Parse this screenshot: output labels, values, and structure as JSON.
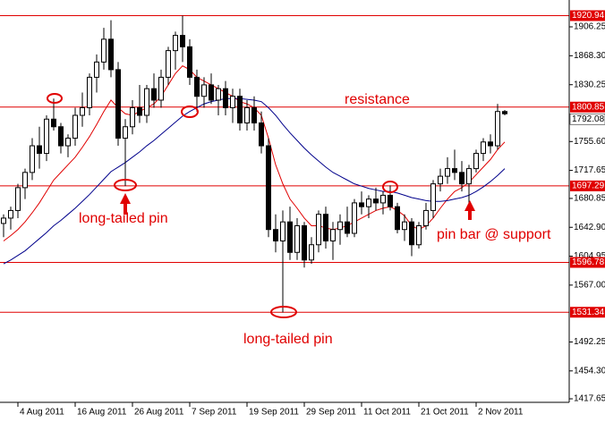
{
  "chart_data": {
    "type": "candlestick",
    "categories": [
      null,
      null,
      "4 Aug 2011",
      null,
      null,
      null,
      null,
      null,
      null,
      null,
      "16 Aug 2011",
      null,
      null,
      null,
      null,
      null,
      null,
      null,
      "26 Aug 2011",
      null,
      null,
      null,
      null,
      null,
      null,
      null,
      "7 Sep 2011",
      null,
      null,
      null,
      null,
      null,
      null,
      null,
      "19 Sep 2011",
      null,
      null,
      null,
      null,
      null,
      null,
      null,
      "29 Sep 2011",
      null,
      null,
      null,
      null,
      null,
      null,
      null,
      "11 Oct 2011",
      null,
      null,
      null,
      null,
      null,
      null,
      null,
      "21 Oct 2011",
      null,
      null,
      null,
      null,
      null,
      null,
      null,
      "2 Nov 2011",
      null,
      null,
      null,
      null
    ],
    "open": [
      1648,
      1655,
      1665,
      1695,
      1715,
      1750,
      1740,
      1785,
      1775,
      1750,
      1760,
      1790,
      1800,
      1840,
      1860,
      1890,
      1850,
      1760,
      1775,
      1800,
      1790,
      1825,
      1810,
      1840,
      1875,
      1895,
      1880,
      1840,
      1815,
      1830,
      1810,
      1825,
      1800,
      1815,
      1780,
      1800,
      1780,
      1750,
      1640,
      1625,
      1650,
      1610,
      1645,
      1600,
      1620,
      1660,
      1625,
      1640,
      1650,
      1635,
      1675,
      1670,
      1680,
      1675,
      1685,
      1670,
      1640,
      1650,
      1620,
      1645,
      1665,
      1700,
      1710,
      1720,
      1715,
      1700,
      1720,
      1740,
      1755,
      1750,
      1795
    ],
    "high": [
      1660,
      1670,
      1700,
      1720,
      1760,
      1775,
      1790,
      1812,
      1780,
      1765,
      1800,
      1820,
      1845,
      1870,
      1905,
      1915,
      1860,
      1785,
      1810,
      1830,
      1830,
      1845,
      1850,
      1880,
      1900,
      1920.94,
      1890,
      1850,
      1840,
      1845,
      1830,
      1835,
      1825,
      1825,
      1810,
      1815,
      1795,
      1760,
      1660,
      1665,
      1670,
      1655,
      1650,
      1630,
      1665,
      1670,
      1650,
      1660,
      1670,
      1680,
      1690,
      1685,
      1695,
      1690,
      1698,
      1675,
      1660,
      1655,
      1650,
      1675,
      1705,
      1720,
      1735,
      1745,
      1730,
      1725,
      1745,
      1760,
      1765,
      1805,
      1797
    ],
    "low": [
      1630,
      1640,
      1655,
      1680,
      1705,
      1720,
      1730,
      1770,
      1740,
      1735,
      1750,
      1775,
      1790,
      1820,
      1850,
      1840,
      1750,
      1697,
      1765,
      1780,
      1780,
      1800,
      1800,
      1830,
      1850,
      1860,
      1830,
      1795,
      1800,
      1805,
      1790,
      1790,
      1780,
      1770,
      1770,
      1770,
      1740,
      1630,
      1610,
      1531,
      1600,
      1600,
      1590,
      1595,
      1610,
      1615,
      1600,
      1620,
      1630,
      1630,
      1660,
      1655,
      1665,
      1660,
      1665,
      1635,
      1625,
      1605,
      1615,
      1640,
      1655,
      1690,
      1700,
      1705,
      1690,
      1674,
      1715,
      1730,
      1740,
      1745,
      1790
    ],
    "close": [
      1655,
      1665,
      1695,
      1715,
      1750,
      1740,
      1785,
      1775,
      1750,
      1760,
      1790,
      1800,
      1840,
      1860,
      1890,
      1850,
      1760,
      1775,
      1800,
      1790,
      1825,
      1810,
      1840,
      1875,
      1895,
      1880,
      1840,
      1815,
      1830,
      1810,
      1825,
      1800,
      1815,
      1780,
      1800,
      1780,
      1750,
      1640,
      1625,
      1650,
      1610,
      1645,
      1600,
      1620,
      1660,
      1625,
      1640,
      1650,
      1635,
      1675,
      1670,
      1680,
      1675,
      1685,
      1670,
      1640,
      1650,
      1620,
      1645,
      1665,
      1700,
      1710,
      1720,
      1715,
      1700,
      1720,
      1740,
      1755,
      1750,
      1795,
      1792.08
    ],
    "moving_averages": [
      {
        "color": "#e00000",
        "values": [
          1625,
          1632,
          1640,
          1650,
          1662,
          1675,
          1690,
          1705,
          1715,
          1725,
          1735,
          1748,
          1762,
          1778,
          1795,
          1810,
          1800,
          1792,
          1790,
          1795,
          1800,
          1805,
          1815,
          1830,
          1845,
          1855,
          1850,
          1840,
          1835,
          1830,
          1825,
          1820,
          1815,
          1808,
          1805,
          1800,
          1790,
          1760,
          1725,
          1700,
          1680,
          1668,
          1655,
          1645,
          1645,
          1642,
          1640,
          1642,
          1645,
          1650,
          1655,
          1660,
          1665,
          1668,
          1670,
          1665,
          1658,
          1645,
          1640,
          1645,
          1655,
          1668,
          1680,
          1690,
          1695,
          1702,
          1712,
          1722,
          1732,
          1745,
          1755
        ]
      },
      {
        "color": "#00008b",
        "values": [
          1595,
          1600,
          1606,
          1612,
          1620,
          1628,
          1636,
          1645,
          1652,
          1660,
          1668,
          1677,
          1686,
          1696,
          1706,
          1716,
          1722,
          1728,
          1735,
          1742,
          1750,
          1757,
          1765,
          1773,
          1781,
          1789,
          1795,
          1800,
          1805,
          1808,
          1810,
          1812,
          1812,
          1812,
          1811,
          1810,
          1808,
          1800,
          1790,
          1778,
          1767,
          1757,
          1747,
          1738,
          1730,
          1722,
          1715,
          1710,
          1705,
          1700,
          1697,
          1694,
          1692,
          1690,
          1690,
          1688,
          1685,
          1682,
          1680,
          1678,
          1677,
          1677,
          1678,
          1680,
          1682,
          1685,
          1690,
          1696,
          1703,
          1711,
          1720
        ]
      }
    ],
    "levels": [
      1920.94,
      1800.85,
      1697.29,
      1596.78,
      1531.34
    ],
    "level_color": "#e00000",
    "last_price": 1792.08,
    "ylim": [
      1413,
      1941.5
    ],
    "yticks": [
      1906.25,
      {
        "value": 1868.3,
        "label": "1868.30"
      },
      1830.25,
      {
        "value": 1755.6,
        "label": "1755.60"
      },
      1717.65,
      1680.85,
      {
        "value": 1642.9,
        "label": "1642.90"
      },
      1604.95,
      {
        "value": 1567,
        "label": "1567.00"
      },
      1492.25,
      {
        "value": 1454.3,
        "label": "1454.30"
      },
      1417.65
    ],
    "annotations": [
      "resistance",
      "long-tailed pin",
      "long-tailed pin",
      "pin bar @ support"
    ]
  }
}
